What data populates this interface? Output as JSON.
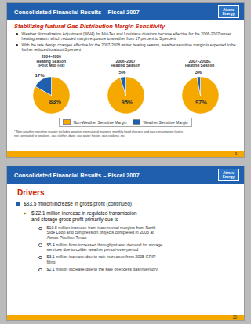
{
  "chart_data": [
    {
      "type": "pie",
      "title": "2004–2006\nHeating Season\n(Post Mid-Tex)",
      "categories": [
        "Non-Weather Sensitive Margin",
        "Weather Sensitive Margin"
      ],
      "values": [
        83,
        17
      ],
      "value_labels": [
        "83%",
        "17%"
      ],
      "colors": [
        "#F5A800",
        "#1F5FAD"
      ],
      "data_labels": true,
      "legend": "bottom",
      "annotations": [
        "Consolidated Financial Results – Fiscal 2007",
        "Atmos\nEnergy",
        "Stabilizing Natural Gas Distribution Margin Sensitivity",
        "Weather Normalization Adjustment (WNA) for Mid-Tex and Louisiana divisions became effective for the 2006-2007 winter heating season, which reduced margin exposure to weather from 17 percent to 5 percent",
        "With the rate design changes effective for the 2007-2008 winter heating season, weather-sensitive margin is expected to be further reduced to about 3 percent",
        "* Non-weather sensitive margin includes weather-normalized margins, monthly fixed charges and gas consumption that is\nnot correlated to weather - gas clothes dryer, gas water heater, gas cooking, etc.",
        "9",
        "Consolidated Financial Results – Fiscal 2007",
        "Atmos\nEnergy",
        "10",
        "Drivers",
        "$33.5 million increase in gross profit (continued)",
        "$ 22.1 million increase in regulated transmission\nand storage gross profit primarily due to",
        "$10.8 million increase from incremental margins from North\nSide Loop and compression projects completed in 2006 at\nAtmos Pipeline-Texas",
        "$5.4 million from increased throughput and demand for storage\nservices due to colder weather period-over-period",
        "$3.1 million increase due to rate increases from 2005 GRIP\nfiling",
        "$2.1 million increase due to the sale of excess gas inventory"
      ]
    },
    {
      "type": "pie",
      "title": "2006–2007\nHeating Season",
      "categories": [
        "Non-Weather Sensitive Margin",
        "Weather Sensitive Margin"
      ],
      "values": [
        95,
        5
      ],
      "value_labels": [
        "95%",
        "5%"
      ],
      "colors": [
        "#F5A800",
        "#1F5FAD"
      ],
      "data_labels": true
    },
    {
      "type": "pie",
      "title": "2007–2008E\nHeating Season",
      "categories": [
        "Non-Weather Sensitive Margin",
        "Weather Sensitive Margin"
      ],
      "values": [
        97,
        3
      ],
      "value_labels": [
        "97%",
        "3%"
      ],
      "colors": [
        "#F5A800",
        "#1F5FAD"
      ],
      "data_labels": true
    }
  ]
}
